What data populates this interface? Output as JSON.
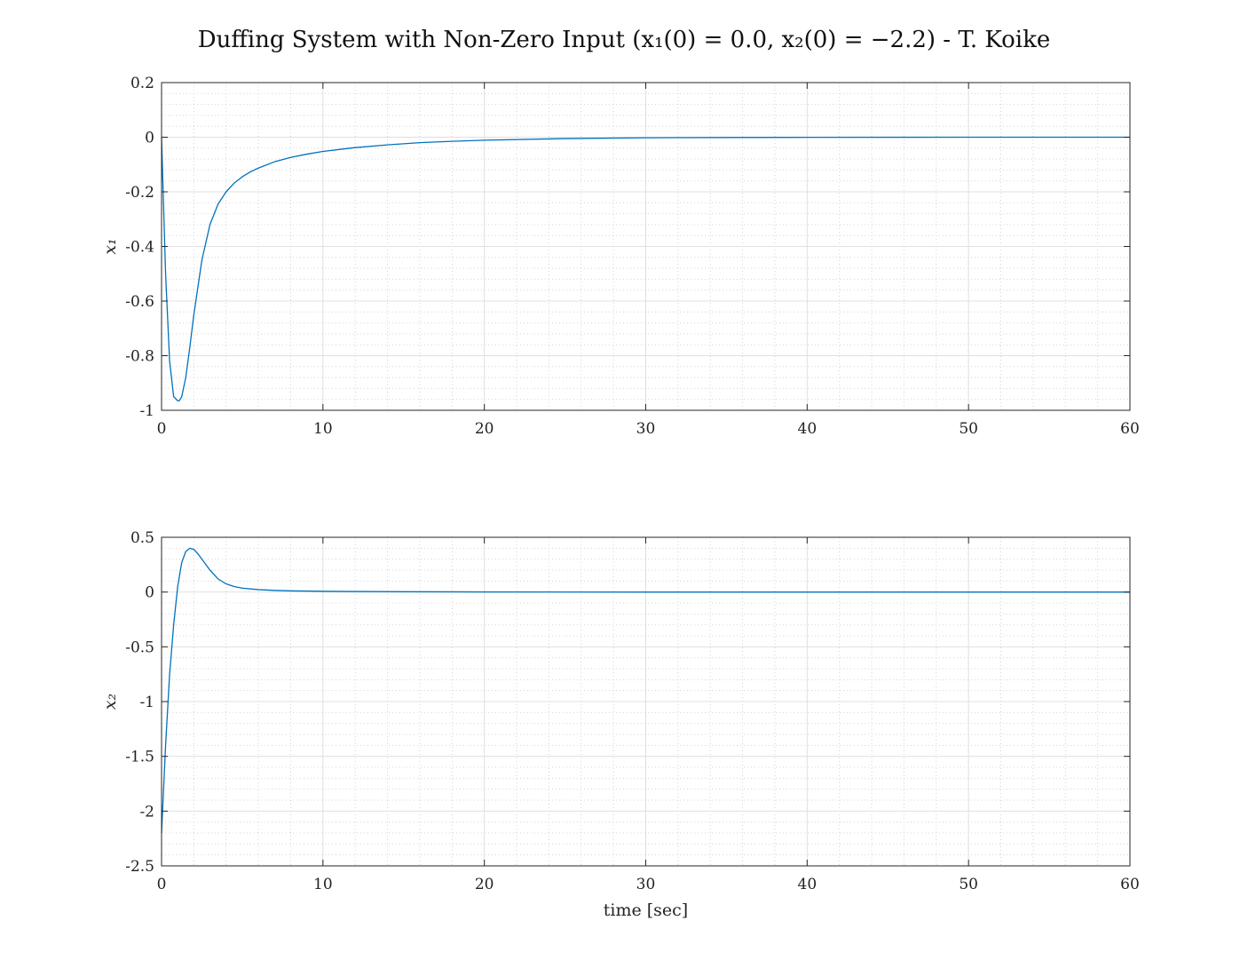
{
  "figure": {
    "title": "Duffing System with Non-Zero Input (x₁(0) = 0.0, x₂(0) = −2.2) - T. Koike"
  },
  "chart_data": [
    {
      "type": "line",
      "title": "",
      "xlabel": "",
      "ylabel": "x₁",
      "xlim": [
        0,
        60
      ],
      "ylim": [
        -1,
        0.2
      ],
      "xticks": [
        0,
        10,
        20,
        30,
        40,
        50,
        60
      ],
      "xtick_labels": [
        "0",
        "10",
        "20",
        "30",
        "40",
        "50",
        "60"
      ],
      "yticks": [
        0.2,
        0,
        -0.2,
        -0.4,
        -0.6,
        -0.8,
        -1
      ],
      "ytick_labels": [
        "0.2",
        "0",
        "-0.2",
        "-0.4",
        "-0.6",
        "-0.8",
        "-1"
      ],
      "grid": true,
      "minor_grid": true,
      "series": [
        {
          "color": "#0072BD",
          "x": [
            0,
            0.25,
            0.5,
            0.75,
            1.0,
            1.1,
            1.25,
            1.5,
            1.75,
            2.0,
            2.5,
            3.0,
            3.5,
            4.0,
            4.5,
            5.0,
            5.5,
            6.0,
            7.0,
            8.0,
            9.0,
            10.0,
            12.0,
            14.0,
            16.0,
            18.0,
            20.0,
            25.0,
            30.0,
            35.0,
            40.0,
            50.0,
            60.0
          ],
          "y": [
            0.0,
            -0.5,
            -0.82,
            -0.95,
            -0.965,
            -0.965,
            -0.95,
            -0.88,
            -0.77,
            -0.65,
            -0.45,
            -0.32,
            -0.245,
            -0.2,
            -0.168,
            -0.145,
            -0.127,
            -0.113,
            -0.09,
            -0.074,
            -0.062,
            -0.052,
            -0.038,
            -0.028,
            -0.02,
            -0.015,
            -0.011,
            -0.005,
            -0.002,
            -0.001,
            -0.0005,
            0.0,
            0.0
          ]
        }
      ]
    },
    {
      "type": "line",
      "title": "",
      "xlabel": "time [sec]",
      "ylabel": "x₂",
      "xlim": [
        0,
        60
      ],
      "ylim": [
        -2.5,
        0.5
      ],
      "xticks": [
        0,
        10,
        20,
        30,
        40,
        50,
        60
      ],
      "xtick_labels": [
        "0",
        "10",
        "20",
        "30",
        "40",
        "50",
        "60"
      ],
      "yticks": [
        0.5,
        0,
        -0.5,
        -1,
        -1.5,
        -2,
        -2.5
      ],
      "ytick_labels": [
        "0.5",
        "0",
        "-0.5",
        "-1",
        "-1.5",
        "-2",
        "-2.5"
      ],
      "grid": true,
      "minor_grid": true,
      "series": [
        {
          "color": "#0072BD",
          "x": [
            0,
            0.25,
            0.5,
            0.75,
            1.0,
            1.25,
            1.5,
            1.75,
            2.0,
            2.25,
            2.5,
            3.0,
            3.5,
            4.0,
            4.5,
            5.0,
            6.0,
            7.0,
            8.0,
            10.0,
            12.0,
            15.0,
            20.0,
            30.0,
            40.0,
            50.0,
            60.0
          ],
          "y": [
            -2.2,
            -1.4,
            -0.75,
            -0.3,
            0.05,
            0.27,
            0.37,
            0.4,
            0.39,
            0.35,
            0.3,
            0.2,
            0.12,
            0.075,
            0.05,
            0.036,
            0.022,
            0.015,
            0.011,
            0.007,
            0.005,
            0.003,
            0.001,
            0.0,
            0.0,
            0.0,
            0.0
          ]
        }
      ]
    }
  ]
}
